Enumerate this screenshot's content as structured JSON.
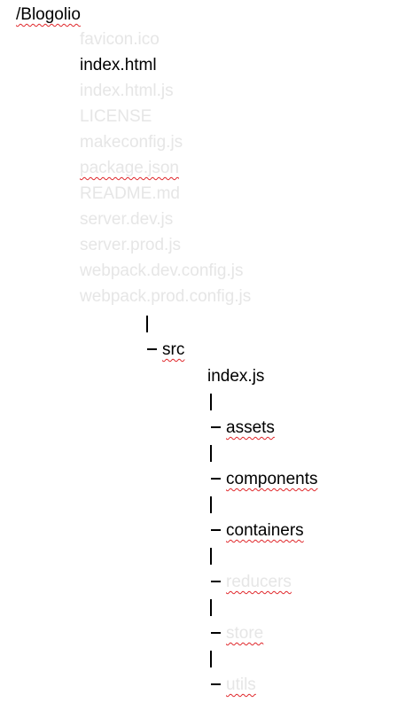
{
  "root": {
    "label": "/Blogolio"
  },
  "root_files": [
    {
      "name": "favicon.ico",
      "faded": true,
      "squiggle": false
    },
    {
      "name": "index.html",
      "faded": false,
      "squiggle": false
    },
    {
      "name": "index.html.js",
      "faded": true,
      "squiggle": false
    },
    {
      "name": "LICENSE",
      "faded": true,
      "squiggle": false
    },
    {
      "name": "makeconfig.js",
      "faded": true,
      "squiggle": false
    },
    {
      "name": "package.json",
      "faded": true,
      "squiggle": true
    },
    {
      "name": "README.md",
      "faded": true,
      "squiggle": false
    },
    {
      "name": "server.dev.js",
      "faded": true,
      "squiggle": false
    },
    {
      "name": "server.prod.js",
      "faded": true,
      "squiggle": false
    },
    {
      "name": "webpack.dev.config.js",
      "faded": true,
      "squiggle": false
    },
    {
      "name": "webpack.prod.config.js",
      "faded": true,
      "squiggle": false
    }
  ],
  "src": {
    "label": "src",
    "file": "index.js",
    "folders": [
      {
        "name": "assets",
        "faded": false
      },
      {
        "name": "components",
        "faded": false
      },
      {
        "name": "containers",
        "faded": false
      },
      {
        "name": "reducers",
        "faded": true
      },
      {
        "name": "store",
        "faded": true
      },
      {
        "name": "utils",
        "faded": true
      }
    ]
  },
  "colors": {
    "text": "#000000",
    "faded_text": "#e6e6e6",
    "spellcheck_squiggle": "#e0262a"
  }
}
